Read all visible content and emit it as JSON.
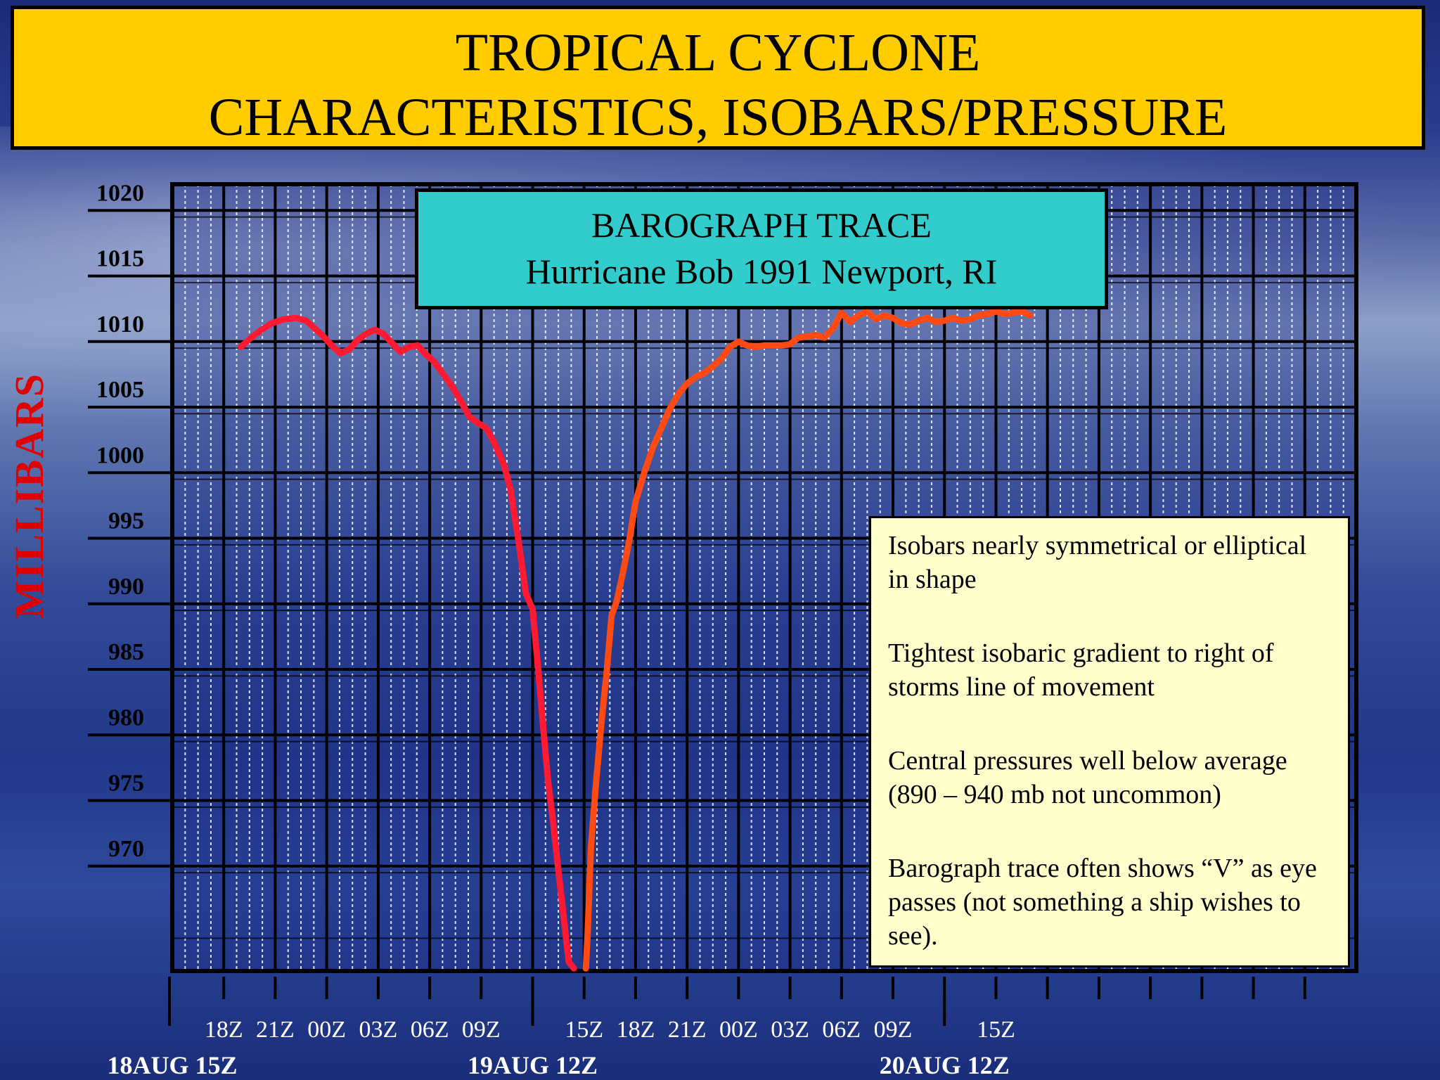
{
  "title": {
    "line1": "TROPICAL CYCLONE",
    "line2": "CHARACTERISTICS, ISOBARS/PRESSURE"
  },
  "colors": {
    "title_bg": "#ffcc00",
    "box_bg": "#33cccc",
    "notes_bg": "#ffffcc",
    "falling_trace": "#ff1a33",
    "rising_trace": "#ff4a14",
    "axis_label": "#e00000"
  },
  "chart_data": {
    "type": "line",
    "title": "BAROGRAPH TRACE",
    "subtitle": "Hurricane Bob 1991 Newport, RI",
    "ylabel": "MILLIBARS",
    "ylim": [
      962,
      1022
    ],
    "xlim": [
      0,
      69
    ],
    "x_unit": "hours after 18AUG 15Z",
    "y_ticks": [
      "1020",
      "1015",
      "1010",
      "1005",
      "1000",
      "995",
      "990",
      "985",
      "980",
      "975",
      "970"
    ],
    "x_ticks": [
      {
        "x": 3,
        "label": "18Z"
      },
      {
        "x": 6,
        "label": "21Z"
      },
      {
        "x": 9,
        "label": "00Z"
      },
      {
        "x": 12,
        "label": "03Z"
      },
      {
        "x": 15,
        "label": "06Z"
      },
      {
        "x": 18,
        "label": "09Z"
      },
      {
        "x": 24,
        "label": "15Z"
      },
      {
        "x": 27,
        "label": "18Z"
      },
      {
        "x": 30,
        "label": "21Z"
      },
      {
        "x": 33,
        "label": "00Z"
      },
      {
        "x": 36,
        "label": "03Z"
      },
      {
        "x": 39,
        "label": "06Z"
      },
      {
        "x": 42,
        "label": "09Z"
      },
      {
        "x": 48,
        "label": "15Z"
      }
    ],
    "x_dates": [
      {
        "x": 0,
        "label": "18AUG 15Z"
      },
      {
        "x": 21,
        "label": "19AUG 12Z"
      },
      {
        "x": 45,
        "label": "20AUG 12Z"
      }
    ],
    "series": [
      {
        "segment": "falling",
        "x": [
          4.0,
          4.6,
          5.2,
          5.8,
          6.5,
          7.2,
          7.8,
          8.3,
          8.8,
          9.3,
          9.8,
          10.3,
          10.8,
          11.3,
          11.8,
          12.3,
          12.8,
          13.3,
          13.8,
          14.3,
          14.8,
          15.3,
          15.8,
          16.3,
          16.8,
          17.3,
          17.8,
          18.3,
          18.8,
          19.3,
          19.7,
          20.2,
          20.6,
          21.0,
          21.3,
          21.6,
          21.9,
          22.2,
          22.5,
          22.8,
          23.1,
          23.4
        ],
        "y": [
          1009.6,
          1010.3,
          1010.9,
          1011.4,
          1011.7,
          1011.8,
          1011.6,
          1011.0,
          1010.4,
          1009.7,
          1009.1,
          1009.4,
          1010.1,
          1010.6,
          1010.9,
          1010.6,
          1009.9,
          1009.2,
          1009.6,
          1009.7,
          1009.0,
          1008.4,
          1007.5,
          1006.6,
          1005.5,
          1004.3,
          1003.8,
          1003.4,
          1002.2,
          1000.7,
          998.8,
          994.6,
          990.8,
          989.6,
          985.4,
          980.8,
          976.5,
          973.3,
          969.7,
          966.2,
          962.7,
          962.2
        ]
      },
      {
        "segment": "rising",
        "x": [
          24.1,
          24.2,
          24.4,
          24.7,
          25.0,
          25.3,
          25.6,
          25.9,
          26.2,
          26.6,
          27.0,
          27.5,
          28.0,
          28.5,
          29.0,
          29.5,
          30.0,
          30.5,
          31.0,
          31.5,
          32.0,
          32.5,
          33.0,
          33.5,
          34.0,
          34.5,
          35.0,
          35.5,
          36.0,
          36.5,
          37.0,
          37.5,
          38.0,
          38.5,
          39.0,
          39.5,
          40.0,
          40.5,
          41.0,
          41.5,
          42.0,
          42.5,
          43.0,
          43.5,
          44.0,
          44.5,
          45.0,
          45.5,
          46.0,
          46.5,
          47.0,
          47.5,
          48.0,
          48.5,
          49.0,
          49.5,
          50.0
        ],
        "y": [
          962.2,
          964.6,
          971.5,
          976.4,
          980.8,
          984.6,
          989.1,
          990.2,
          992.0,
          994.6,
          997.8,
          1000.0,
          1001.9,
          1003.4,
          1004.9,
          1006.0,
          1006.8,
          1007.3,
          1007.6,
          1008.1,
          1008.7,
          1009.6,
          1010.0,
          1009.7,
          1009.6,
          1009.7,
          1009.7,
          1009.7,
          1009.8,
          1010.3,
          1010.4,
          1010.5,
          1010.3,
          1011.0,
          1012.2,
          1011.5,
          1012.0,
          1012.3,
          1011.7,
          1012.0,
          1011.8,
          1011.4,
          1011.3,
          1011.6,
          1011.8,
          1011.5,
          1011.6,
          1011.8,
          1011.6,
          1011.7,
          1012.0,
          1012.1,
          1012.3,
          1012.1,
          1012.2,
          1012.3,
          1012.0
        ]
      }
    ]
  },
  "notes": [
    "Isobars nearly symmetrical or elliptical in shape",
    "Tightest isobaric gradient to right of storms line of movement",
    "Central pressures well below average (890 – 940 mb not uncommon)",
    "Barograph trace often shows “V” as eye passes (not something a ship wishes to see)."
  ]
}
